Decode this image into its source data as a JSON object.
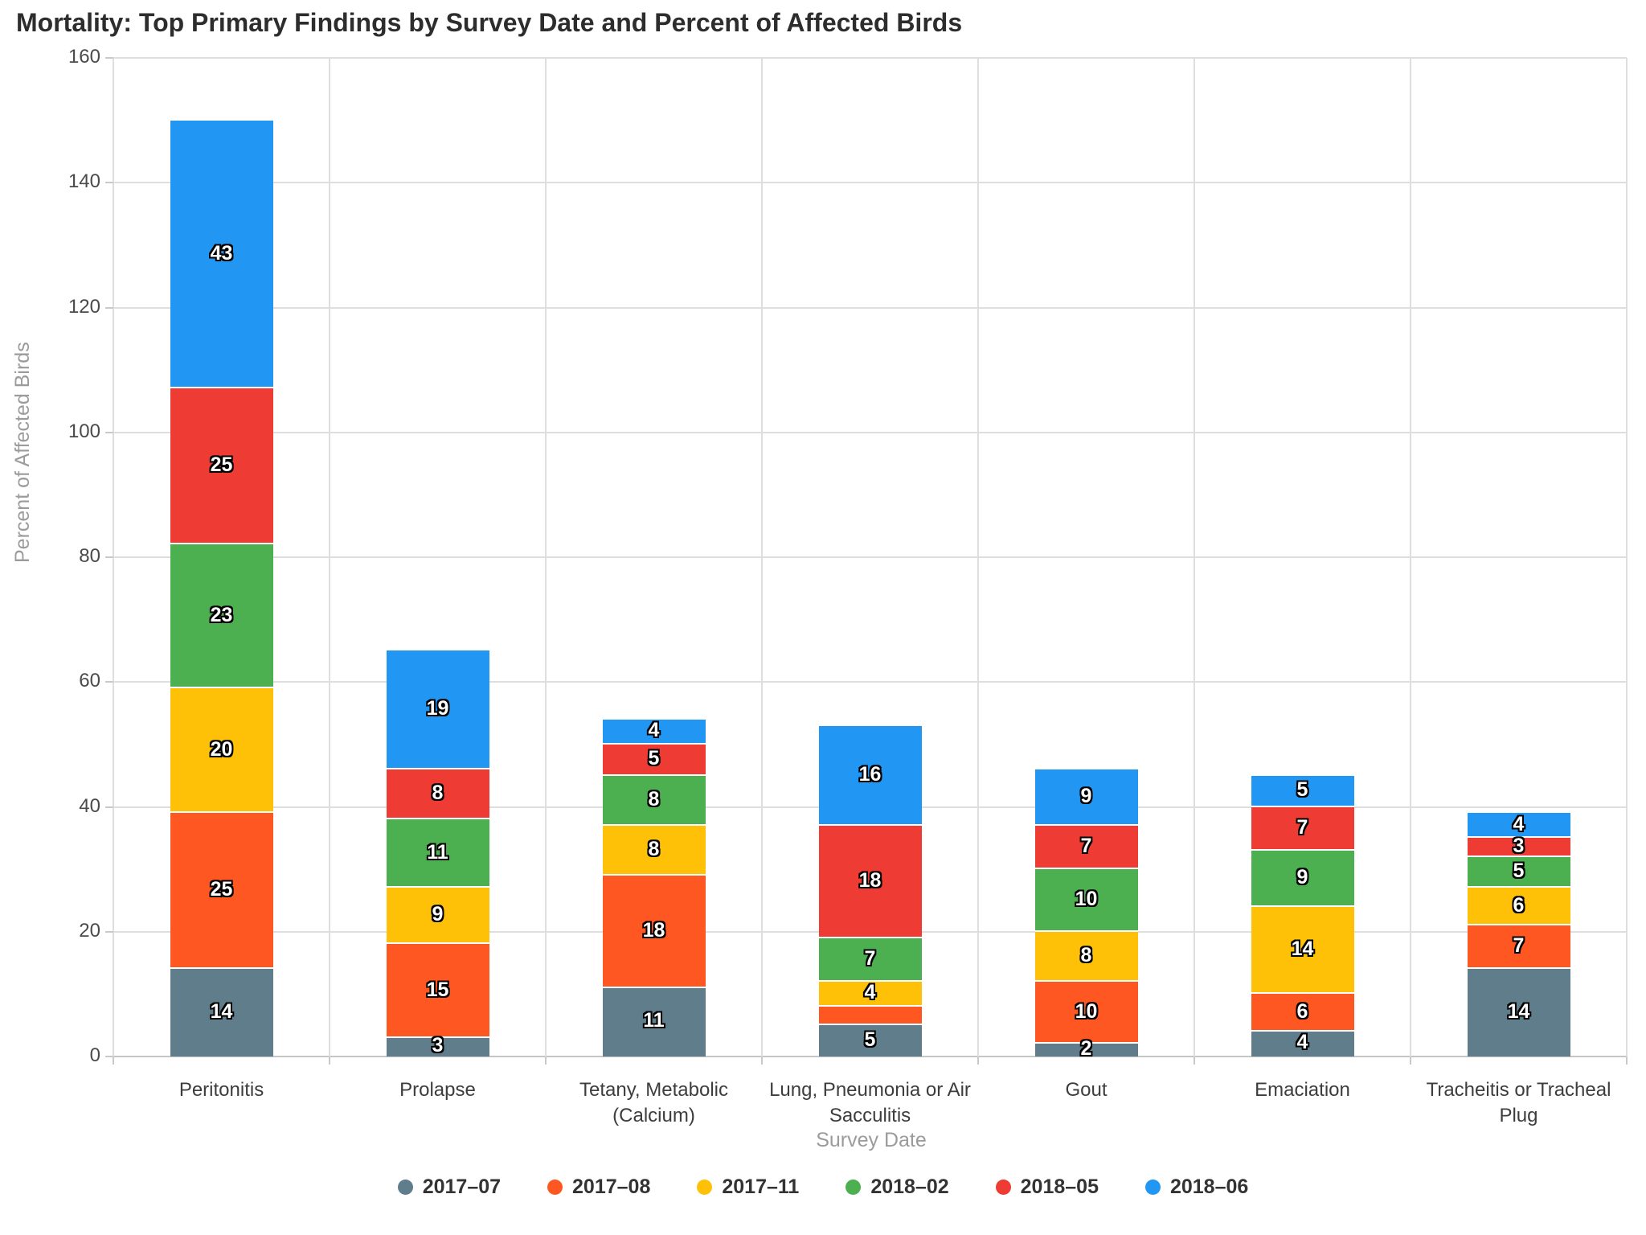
{
  "chart_data": {
    "type": "bar",
    "stacked": true,
    "title": "Mortality: Top Primary Findings by Survey Date and Percent of Affected Birds",
    "xlabel": "Survey Date",
    "ylabel": "Percent of Affected Birds",
    "ylim": [
      0,
      160
    ],
    "ytick_step": 20,
    "grid": true,
    "legend_position": "bottom",
    "categories": [
      "Peritonitis",
      "Prolapse",
      "Tetany, Metabolic (Calcium)",
      "Lung, Pneumonia or Air Sacculitis",
      "Gout",
      "Emaciation",
      "Tracheitis or Tracheal Plug"
    ],
    "series": [
      {
        "name": "2017–07",
        "color": "#607D8B",
        "values": [
          14,
          3,
          11,
          5,
          2,
          4,
          14
        ]
      },
      {
        "name": "2017–08",
        "color": "#FF5722",
        "values": [
          25,
          15,
          18,
          3,
          10,
          6,
          7
        ],
        "hidden_value_labels": [
          3
        ]
      },
      {
        "name": "2017–11",
        "color": "#FFC107",
        "values": [
          20,
          9,
          8,
          4,
          8,
          14,
          6
        ]
      },
      {
        "name": "2018–02",
        "color": "#4CAF50",
        "values": [
          23,
          11,
          8,
          7,
          10,
          9,
          5
        ]
      },
      {
        "name": "2018–05",
        "color": "#EE3B33",
        "values": [
          25,
          8,
          5,
          18,
          7,
          7,
          3
        ]
      },
      {
        "name": "2018–06",
        "color": "#2196F3",
        "values": [
          43,
          19,
          4,
          16,
          9,
          5,
          4
        ]
      }
    ],
    "totals": [
      150,
      65,
      54,
      53,
      46,
      45,
      39
    ]
  }
}
